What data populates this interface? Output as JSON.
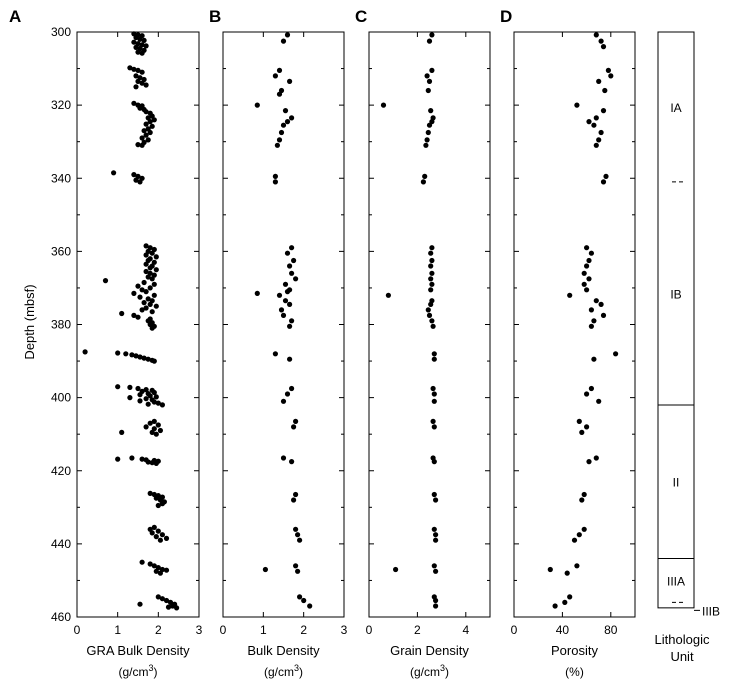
{
  "figure": {
    "ylabel": "Depth (mbsf)",
    "y_ticks": [
      "300",
      "320",
      "340",
      "360",
      "380",
      "400",
      "420",
      "440",
      "460"
    ],
    "lithology_xlabel_line1": "Lithologic",
    "lithology_xlabel_line2": "Unit"
  },
  "chart_data": [
    {
      "panel": "A",
      "type": "scatter",
      "xlabel": "GRA Bulk Density",
      "xunit": "(g/cm3)",
      "xlim": [
        0,
        3
      ],
      "x_ticks": [
        "0",
        "1",
        "2",
        "3"
      ],
      "ylim": [
        300,
        460
      ],
      "y_inverted": true,
      "points": [
        [
          1.4,
          300.5
        ],
        [
          1.5,
          300.8
        ],
        [
          1.6,
          301
        ],
        [
          1.45,
          301.5
        ],
        [
          1.55,
          302
        ],
        [
          1.65,
          302.3
        ],
        [
          1.4,
          302.8
        ],
        [
          1.5,
          303.2
        ],
        [
          1.6,
          303.5
        ],
        [
          1.7,
          303.8
        ],
        [
          1.45,
          304.2
        ],
        [
          1.55,
          304.5
        ],
        [
          1.65,
          305
        ],
        [
          1.5,
          305.5
        ],
        [
          1.6,
          305.8
        ],
        [
          1.3,
          309.8
        ],
        [
          1.4,
          310.2
        ],
        [
          1.5,
          310.5
        ],
        [
          1.6,
          311
        ],
        [
          1.45,
          312
        ],
        [
          1.55,
          312.5
        ],
        [
          1.65,
          313
        ],
        [
          1.5,
          313.5
        ],
        [
          1.6,
          314
        ],
        [
          1.7,
          314.5
        ],
        [
          1.45,
          315
        ],
        [
          1.4,
          319.5
        ],
        [
          1.5,
          320
        ],
        [
          1.6,
          320.2
        ],
        [
          1.55,
          320.8
        ],
        [
          1.65,
          321.2
        ],
        [
          1.7,
          321.8
        ],
        [
          1.8,
          322.2
        ],
        [
          1.85,
          323
        ],
        [
          1.75,
          323.5
        ],
        [
          1.9,
          324
        ],
        [
          1.8,
          324.5
        ],
        [
          1.7,
          325.2
        ],
        [
          1.85,
          325.8
        ],
        [
          1.75,
          326.5
        ],
        [
          1.65,
          327
        ],
        [
          1.8,
          327.5
        ],
        [
          1.7,
          328.2
        ],
        [
          1.6,
          329
        ],
        [
          1.75,
          329.5
        ],
        [
          1.65,
          330.2
        ],
        [
          1.5,
          330.8
        ],
        [
          1.6,
          331
        ],
        [
          0.9,
          338.5
        ],
        [
          1.4,
          339
        ],
        [
          1.5,
          339.5
        ],
        [
          1.6,
          340
        ],
        [
          1.45,
          340.5
        ],
        [
          1.55,
          341
        ],
        [
          1.7,
          358.5
        ],
        [
          1.8,
          359
        ],
        [
          1.9,
          359.5
        ],
        [
          1.75,
          360
        ],
        [
          1.85,
          360.5
        ],
        [
          1.7,
          361
        ],
        [
          1.95,
          361.5
        ],
        [
          1.8,
          362
        ],
        [
          1.75,
          362.5
        ],
        [
          1.9,
          363
        ],
        [
          1.7,
          363.5
        ],
        [
          1.85,
          364
        ],
        [
          1.8,
          364.5
        ],
        [
          1.95,
          365
        ],
        [
          1.7,
          365.5
        ],
        [
          1.8,
          366
        ],
        [
          1.9,
          366.5
        ],
        [
          1.75,
          367
        ],
        [
          1.85,
          367.5
        ],
        [
          0.7,
          368
        ],
        [
          1.65,
          368.5
        ],
        [
          1.9,
          369
        ],
        [
          1.5,
          369.5
        ],
        [
          1.8,
          370
        ],
        [
          1.6,
          370.5
        ],
        [
          1.7,
          371
        ],
        [
          1.4,
          371.5
        ],
        [
          1.9,
          372
        ],
        [
          1.55,
          372.5
        ],
        [
          1.75,
          373
        ],
        [
          1.85,
          373.5
        ],
        [
          1.65,
          374
        ],
        [
          1.8,
          374.5
        ],
        [
          1.95,
          375
        ],
        [
          1.7,
          375.5
        ],
        [
          1.6,
          376
        ],
        [
          1.85,
          376.5
        ],
        [
          1.1,
          377
        ],
        [
          1.4,
          377.5
        ],
        [
          1.5,
          378
        ],
        [
          1.8,
          378.5
        ],
        [
          1.75,
          379
        ],
        [
          1.85,
          379.5
        ],
        [
          1.8,
          380
        ],
        [
          1.9,
          380.5
        ],
        [
          1.85,
          381
        ],
        [
          0.2,
          387.5
        ],
        [
          1.0,
          387.8
        ],
        [
          1.2,
          388
        ],
        [
          1.35,
          388.3
        ],
        [
          1.45,
          388.6
        ],
        [
          1.55,
          388.9
        ],
        [
          1.65,
          389.2
        ],
        [
          1.75,
          389.5
        ],
        [
          1.85,
          389.8
        ],
        [
          1.9,
          390
        ],
        [
          1.0,
          397
        ],
        [
          1.3,
          397.2
        ],
        [
          1.5,
          397.5
        ],
        [
          1.7,
          397.8
        ],
        [
          1.85,
          398
        ],
        [
          1.6,
          398.3
        ],
        [
          1.9,
          398.6
        ],
        [
          1.75,
          398.9
        ],
        [
          1.55,
          399.2
        ],
        [
          1.8,
          399.5
        ],
        [
          1.95,
          399.8
        ],
        [
          1.3,
          400
        ],
        [
          1.7,
          400.3
        ],
        [
          1.85,
          400.6
        ],
        [
          1.55,
          400.9
        ],
        [
          1.9,
          401.2
        ],
        [
          2.0,
          401.5
        ],
        [
          1.75,
          401.8
        ],
        [
          2.1,
          402
        ],
        [
          1.9,
          406.5
        ],
        [
          1.8,
          407
        ],
        [
          2.0,
          407.5
        ],
        [
          1.7,
          408
        ],
        [
          1.9,
          408.5
        ],
        [
          2.05,
          409
        ],
        [
          1.85,
          409.5
        ],
        [
          1.1,
          409.5
        ],
        [
          1.95,
          410
        ],
        [
          1.35,
          416.5
        ],
        [
          1.6,
          416.8
        ],
        [
          1.7,
          417
        ],
        [
          1.9,
          417.2
        ],
        [
          2.0,
          417.4
        ],
        [
          1.75,
          417.6
        ],
        [
          1.0,
          416.8
        ],
        [
          1.85,
          417.8
        ],
        [
          1.95,
          418
        ],
        [
          1.8,
          426.2
        ],
        [
          1.9,
          426.5
        ],
        [
          2.0,
          426.8
        ],
        [
          2.1,
          427.2
        ],
        [
          1.95,
          427.5
        ],
        [
          2.05,
          428
        ],
        [
          2.15,
          428.5
        ],
        [
          2.1,
          429
        ],
        [
          2.0,
          429.5
        ],
        [
          1.9,
          435.5
        ],
        [
          1.8,
          436
        ],
        [
          2.0,
          436.5
        ],
        [
          1.85,
          437
        ],
        [
          2.1,
          437.5
        ],
        [
          1.95,
          438
        ],
        [
          2.2,
          438.5
        ],
        [
          2.05,
          439
        ],
        [
          1.6,
          445
        ],
        [
          1.8,
          445.5
        ],
        [
          1.9,
          446
        ],
        [
          2.0,
          446.5
        ],
        [
          2.1,
          447
        ],
        [
          2.2,
          447.2
        ],
        [
          1.95,
          447.5
        ],
        [
          2.05,
          448
        ],
        [
          1.55,
          456.5
        ],
        [
          2.0,
          454.5
        ],
        [
          2.1,
          455
        ],
        [
          2.2,
          455.5
        ],
        [
          2.3,
          456
        ],
        [
          2.4,
          456.5
        ],
        [
          2.35,
          457
        ],
        [
          2.25,
          457.3
        ],
        [
          2.45,
          457.5
        ]
      ]
    },
    {
      "panel": "B",
      "type": "scatter",
      "xlabel": "Bulk Density",
      "xunit": "(g/cm3)",
      "xlim": [
        0,
        3
      ],
      "x_ticks": [
        "0",
        "1",
        "2",
        "3"
      ],
      "ylim": [
        300,
        460
      ],
      "y_inverted": true,
      "points": [
        [
          1.6,
          300.8
        ],
        [
          1.5,
          302.5
        ],
        [
          1.4,
          310.5
        ],
        [
          1.3,
          312
        ],
        [
          1.65,
          313.5
        ],
        [
          1.45,
          316
        ],
        [
          1.4,
          317
        ],
        [
          0.85,
          320
        ],
        [
          1.55,
          321.5
        ],
        [
          1.7,
          323.5
        ],
        [
          1.6,
          324.5
        ],
        [
          1.5,
          325.5
        ],
        [
          1.45,
          327.5
        ],
        [
          1.4,
          329.5
        ],
        [
          1.35,
          331
        ],
        [
          1.3,
          339.5
        ],
        [
          1.3,
          341
        ],
        [
          1.7,
          359
        ],
        [
          1.6,
          360.5
        ],
        [
          1.75,
          362.5
        ],
        [
          1.65,
          364
        ],
        [
          1.7,
          366
        ],
        [
          1.8,
          367.5
        ],
        [
          1.55,
          369
        ],
        [
          1.65,
          370.5
        ],
        [
          1.6,
          371
        ],
        [
          1.4,
          372
        ],
        [
          0.85,
          371.5
        ],
        [
          1.55,
          373.5
        ],
        [
          1.65,
          374.5
        ],
        [
          1.45,
          376
        ],
        [
          1.5,
          377.5
        ],
        [
          1.7,
          379
        ],
        [
          1.65,
          380.5
        ],
        [
          1.3,
          388
        ],
        [
          1.65,
          389.5
        ],
        [
          1.7,
          397.5
        ],
        [
          1.6,
          399
        ],
        [
          1.5,
          401
        ],
        [
          1.8,
          406.5
        ],
        [
          1.75,
          408
        ],
        [
          1.5,
          416.5
        ],
        [
          1.7,
          417.5
        ],
        [
          1.8,
          426.5
        ],
        [
          1.75,
          428
        ],
        [
          1.8,
          436
        ],
        [
          1.85,
          437.5
        ],
        [
          1.9,
          439
        ],
        [
          1.8,
          446
        ],
        [
          1.85,
          447.5
        ],
        [
          1.05,
          447
        ],
        [
          1.9,
          454.5
        ],
        [
          2.0,
          455.5
        ],
        [
          2.15,
          457
        ]
      ]
    },
    {
      "panel": "C",
      "type": "scatter",
      "xlabel": "Grain Density",
      "xunit": "(g/cm3)",
      "xlim": [
        0,
        5
      ],
      "x_ticks": [
        "0",
        "2",
        "4"
      ],
      "ylim": [
        300,
        460
      ],
      "y_inverted": true,
      "points": [
        [
          2.6,
          300.8
        ],
        [
          2.5,
          302.5
        ],
        [
          2.6,
          310.5
        ],
        [
          2.4,
          312
        ],
        [
          2.5,
          313.5
        ],
        [
          2.45,
          316
        ],
        [
          0.6,
          320
        ],
        [
          2.55,
          321.5
        ],
        [
          2.65,
          323.5
        ],
        [
          2.6,
          324.5
        ],
        [
          2.5,
          325.5
        ],
        [
          2.45,
          327.5
        ],
        [
          2.4,
          329.5
        ],
        [
          2.35,
          331
        ],
        [
          2.3,
          339.5
        ],
        [
          2.25,
          341
        ],
        [
          2.6,
          359
        ],
        [
          2.55,
          360.5
        ],
        [
          2.6,
          362.5
        ],
        [
          2.55,
          364
        ],
        [
          2.6,
          366
        ],
        [
          2.55,
          367.5
        ],
        [
          2.6,
          369
        ],
        [
          2.55,
          370.5
        ],
        [
          0.8,
          372
        ],
        [
          2.6,
          373.5
        ],
        [
          2.55,
          374.5
        ],
        [
          2.45,
          376
        ],
        [
          2.5,
          377.5
        ],
        [
          2.6,
          379
        ],
        [
          2.65,
          380.5
        ],
        [
          2.7,
          388
        ],
        [
          2.7,
          389.5
        ],
        [
          2.65,
          397.5
        ],
        [
          2.7,
          399
        ],
        [
          2.7,
          401
        ],
        [
          2.65,
          406.5
        ],
        [
          2.7,
          408
        ],
        [
          2.65,
          416.5
        ],
        [
          2.7,
          417.5
        ],
        [
          2.7,
          426.5
        ],
        [
          2.75,
          428
        ],
        [
          2.7,
          436
        ],
        [
          2.75,
          437.5
        ],
        [
          2.75,
          439
        ],
        [
          2.7,
          446
        ],
        [
          2.75,
          447.5
        ],
        [
          1.1,
          447
        ],
        [
          2.7,
          454.5
        ],
        [
          2.75,
          455.5
        ],
        [
          2.75,
          457
        ]
      ]
    },
    {
      "panel": "D",
      "type": "scatter",
      "xlabel": "Porosity",
      "xunit": "(%)",
      "xlim": [
        0,
        100
      ],
      "x_ticks": [
        "0",
        "40",
        "80"
      ],
      "ylim": [
        300,
        460
      ],
      "y_inverted": true,
      "points": [
        [
          68,
          300.8
        ],
        [
          72,
          302.5
        ],
        [
          74,
          304
        ],
        [
          78,
          310.5
        ],
        [
          80,
          312
        ],
        [
          70,
          313.5
        ],
        [
          75,
          316
        ],
        [
          52,
          320
        ],
        [
          74,
          321.5
        ],
        [
          68,
          323.5
        ],
        [
          62,
          324.5
        ],
        [
          66,
          325.5
        ],
        [
          72,
          327.5
        ],
        [
          70,
          329.5
        ],
        [
          68,
          331
        ],
        [
          76,
          339.5
        ],
        [
          74,
          341
        ],
        [
          60,
          359
        ],
        [
          64,
          360.5
        ],
        [
          62,
          362.5
        ],
        [
          60,
          364
        ],
        [
          58,
          366
        ],
        [
          62,
          367.5
        ],
        [
          58,
          369
        ],
        [
          60,
          370.5
        ],
        [
          46,
          372
        ],
        [
          68,
          373.5
        ],
        [
          72,
          374.5
        ],
        [
          64,
          376
        ],
        [
          74,
          377.5
        ],
        [
          66,
          379
        ],
        [
          64,
          380.5
        ],
        [
          84,
          388
        ],
        [
          66,
          389.5
        ],
        [
          64,
          397.5
        ],
        [
          60,
          399
        ],
        [
          70,
          401
        ],
        [
          54,
          406.5
        ],
        [
          60,
          408
        ],
        [
          56,
          409.5
        ],
        [
          68,
          416.5
        ],
        [
          62,
          417.5
        ],
        [
          58,
          426.5
        ],
        [
          56,
          428
        ],
        [
          58,
          436
        ],
        [
          54,
          437.5
        ],
        [
          50,
          439
        ],
        [
          30,
          447
        ],
        [
          44,
          448
        ],
        [
          52,
          446
        ],
        [
          34,
          457
        ],
        [
          42,
          456
        ],
        [
          46,
          454.5
        ]
      ]
    }
  ],
  "lithology": {
    "units": [
      {
        "label": "IA",
        "top": 300,
        "bottom": 341,
        "boundary_below": "dashed"
      },
      {
        "label": "IB",
        "top": 341,
        "bottom": 402,
        "boundary_below": "solid"
      },
      {
        "label": "II",
        "top": 402,
        "bottom": 444,
        "boundary_below": "solid"
      },
      {
        "label": "IIIA",
        "top": 444,
        "bottom": 456,
        "boundary_below": "dashed"
      },
      {
        "label": "IIIB",
        "top": 456,
        "bottom": 457.5,
        "boundary_below": "solid",
        "label_outside": true
      }
    ]
  }
}
